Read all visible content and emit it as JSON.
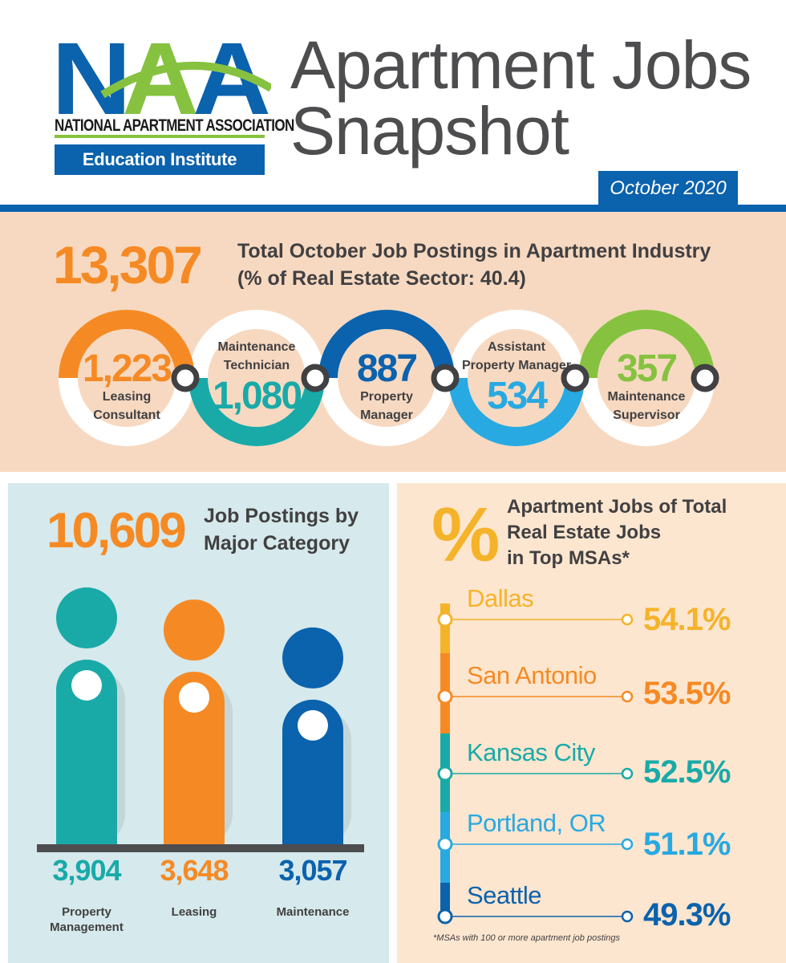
{
  "header": {
    "logo_text": "NAA",
    "logo_org": "NATIONAL APARTMENT ASSOCIATION",
    "logo_unit": "Education Institute",
    "title_line1": "Apartment Jobs",
    "title_line2": "Snapshot",
    "date": "October 2020"
  },
  "totals": {
    "value": "13,307",
    "label_line1": "Total October Job Postings in Apartment Industry",
    "label_line2": "(% of Real Estate Sector: 40.4)"
  },
  "rings": [
    {
      "value": "1,223",
      "label_line1": "Leasing",
      "label_line2": "Consultant",
      "color": "#f58a25"
    },
    {
      "value": "1,080",
      "label_line1": "Maintenance",
      "label_line2": "Technician",
      "color": "#19aaa8"
    },
    {
      "value": "887",
      "label_line1": "Property",
      "label_line2": "Manager",
      "color": "#0b62ad"
    },
    {
      "value": "534",
      "label_line1": "Assistant",
      "label_line2": "Property Manager",
      "color": "#28a9e1"
    },
    {
      "value": "357",
      "label_line1": "Maintenance",
      "label_line2": "Supervisor",
      "color": "#86c240"
    }
  ],
  "category": {
    "value": "10,609",
    "label_line1": "Job Postings by",
    "label_line2": "Major Category",
    "items": [
      {
        "value": "3,904",
        "name_line1": "Property",
        "name_line2": "Management",
        "amount": 3904,
        "color": "#19aaa8"
      },
      {
        "value": "3,648",
        "name_line1": "Leasing",
        "name_line2": "",
        "amount": 3648,
        "color": "#f58a25"
      },
      {
        "value": "3,057",
        "name_line1": "Maintenance",
        "name_line2": "",
        "amount": 3057,
        "color": "#0b62ad"
      }
    ]
  },
  "msa": {
    "icon": "%",
    "label_line1": "Apartment Jobs of Total",
    "label_line2": "Real Estate Jobs",
    "label_line3": "in Top MSAs*",
    "items": [
      {
        "city": "Dallas",
        "value": "54.1%",
        "color": "#f5b32a"
      },
      {
        "city": "San Antonio",
        "value": "53.5%",
        "color": "#f58a25"
      },
      {
        "city": "Kansas City",
        "value": "52.5%",
        "color": "#19aaa8"
      },
      {
        "city": "Portland, OR",
        "value": "51.1%",
        "color": "#28a9e1"
      },
      {
        "city": "Seattle",
        "value": "49.3%",
        "color": "#0b62ad"
      }
    ],
    "footnote": "*MSAs with 100 or more apartment job postings"
  },
  "chart_data": {
    "type": "bar",
    "categories": [
      "Property Management",
      "Leasing",
      "Maintenance"
    ],
    "values": [
      3904,
      3648,
      3057
    ],
    "title": "Job Postings by Major Category"
  }
}
